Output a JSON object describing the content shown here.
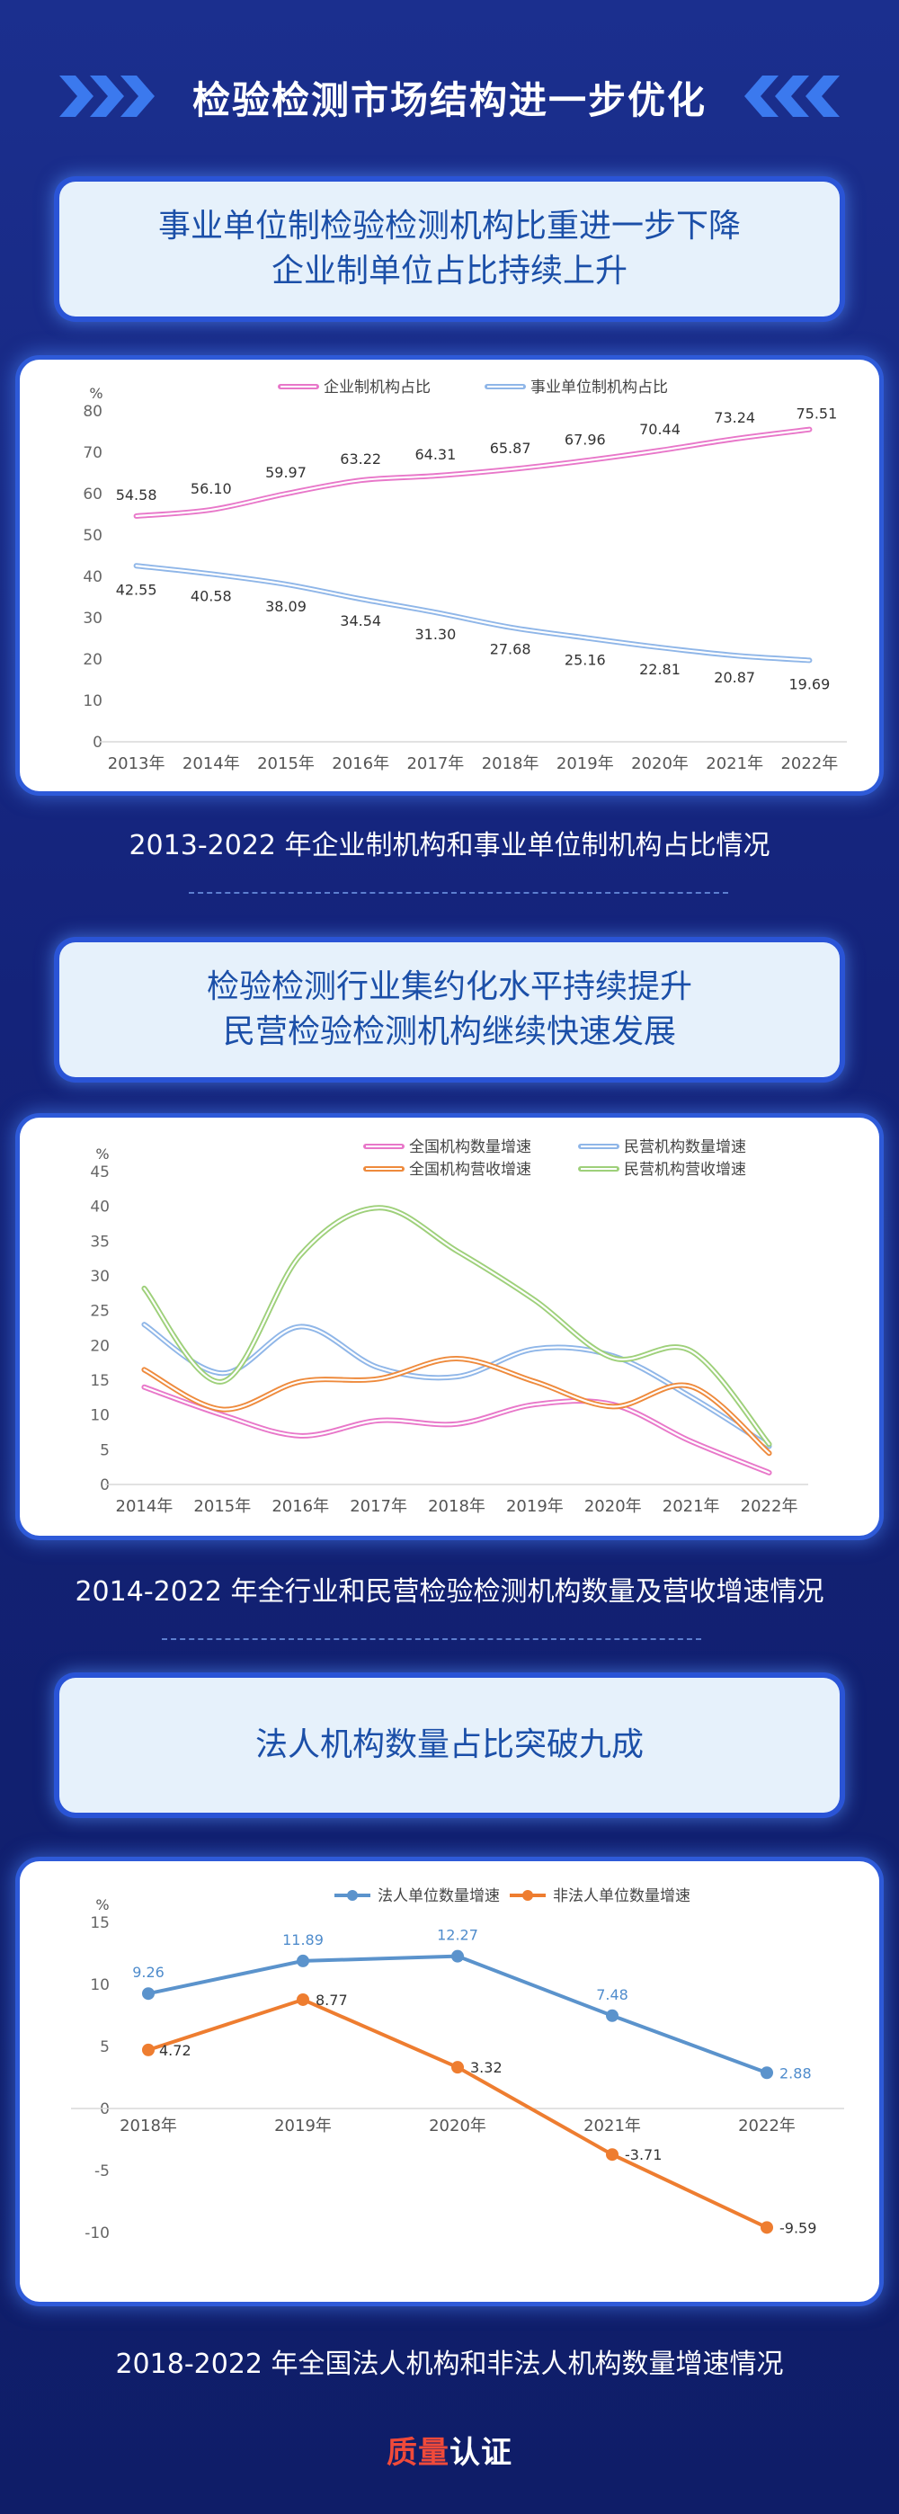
{
  "header": {
    "title": "检验检测市场结构进一步优化"
  },
  "section1": {
    "headline_line1": "事业单位制检验检测机构比重进一步下降",
    "headline_line2": "企业制单位占比持续上升",
    "caption": "2013-2022 年企业制机构和事业单位制机构占比情况"
  },
  "section2": {
    "headline_line1": "检验检测行业集约化水平持续提升",
    "headline_line2": "民营检验检测机构继续快速发展",
    "caption": "2014-2022 年全行业和民营检验检测机构数量及营收增速情况"
  },
  "section3": {
    "headline": "法人机构数量占比突破九成",
    "caption": "2018-2022 年全国法人机构和非法人机构数量增速情况"
  },
  "logo": {
    "part1": "质量",
    "part2": "认证"
  },
  "chart_data": [
    {
      "type": "line",
      "unit": "%",
      "categories": [
        "2013年",
        "2014年",
        "2015年",
        "2016年",
        "2017年",
        "2018年",
        "2019年",
        "2020年",
        "2021年",
        "2022年"
      ],
      "ylim": [
        0,
        80
      ],
      "yticks": [
        0,
        10,
        20,
        30,
        40,
        50,
        60,
        70,
        80
      ],
      "series": [
        {
          "name": "企业制机构占比",
          "color": "#e877c9",
          "values": [
            54.58,
            56.1,
            59.97,
            63.22,
            64.31,
            65.87,
            67.96,
            70.44,
            73.24,
            75.51
          ]
        },
        {
          "name": "事业单位制机构占比",
          "color": "#8fb6e8",
          "values": [
            42.55,
            40.58,
            38.09,
            34.54,
            31.3,
            27.68,
            25.16,
            22.81,
            20.87,
            19.69
          ]
        }
      ],
      "legend": "top"
    },
    {
      "type": "line",
      "unit": "%",
      "categories": [
        "2014年",
        "2015年",
        "2016年",
        "2017年",
        "2018年",
        "2019年",
        "2020年",
        "2021年",
        "2022年"
      ],
      "ylim": [
        0,
        45
      ],
      "yticks": [
        0,
        5,
        10,
        15,
        20,
        25,
        30,
        35,
        40,
        45
      ],
      "series": [
        {
          "name": "全国机构数量增速",
          "color": "#e877c9",
          "values": [
            14,
            10,
            7,
            9.2,
            8.7,
            11.5,
            11.5,
            6.2,
            1.7
          ]
        },
        {
          "name": "民营机构数量增速",
          "color": "#8fb6e8",
          "values": [
            23,
            16,
            22.7,
            16.8,
            15.5,
            19.5,
            18.5,
            12.6,
            5.5
          ]
        },
        {
          "name": "全国机构营收增速",
          "color": "#ee8a3c",
          "values": [
            16.5,
            10.8,
            14.8,
            15.2,
            18.1,
            14.8,
            11.2,
            14.1,
            4.5
          ]
        },
        {
          "name": "民营机构营收增速",
          "color": "#9ed07a",
          "values": [
            28.2,
            14.8,
            33,
            39.8,
            33.6,
            26.5,
            18.2,
            19.2,
            5.8
          ]
        }
      ],
      "legend": "top-right"
    },
    {
      "type": "line",
      "unit": "%",
      "categories": [
        "2018年",
        "2019年",
        "2020年",
        "2021年",
        "2022年"
      ],
      "ylim": [
        -10,
        15
      ],
      "yticks": [
        -10,
        -5,
        0,
        5,
        10,
        15
      ],
      "series": [
        {
          "name": "法人单位数量增速",
          "color": "#5b93cc",
          "labelColor": "#4f8ccc",
          "values": [
            9.26,
            11.89,
            12.27,
            7.48,
            2.88
          ],
          "labels": [
            "9.26",
            "11.89",
            "12.27",
            "7.48",
            "2.88"
          ]
        },
        {
          "name": "非法人单位数量增速",
          "color": "#ee7d30",
          "labelColor": "#333333",
          "values": [
            4.72,
            8.77,
            3.32,
            -3.71,
            -9.59
          ],
          "labels": [
            "4.72",
            "8.77",
            "3.32",
            "-3.71",
            "-9.59"
          ]
        }
      ],
      "legend": "top"
    }
  ]
}
